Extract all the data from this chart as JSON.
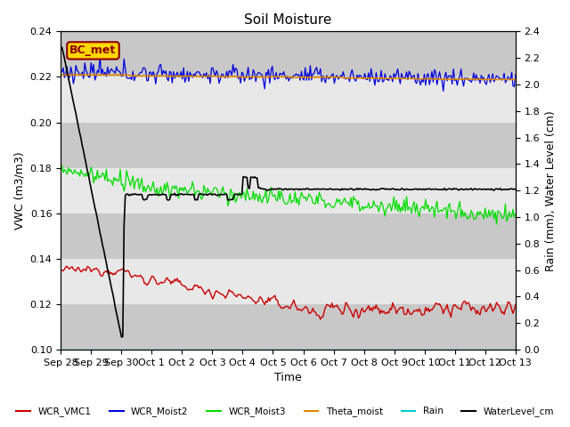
{
  "title": "Soil Moisture",
  "xlabel": "Time",
  "ylabel_left": "VWC (m3/m3)",
  "ylabel_right": "Rain (mm), Water Level (cm)",
  "ylim_left": [
    0.1,
    0.24
  ],
  "ylim_right": [
    0.0,
    2.4
  ],
  "yticks_left": [
    0.1,
    0.12,
    0.14,
    0.16,
    0.18,
    0.2,
    0.22,
    0.24
  ],
  "yticks_right": [
    0.0,
    0.2,
    0.4,
    0.6,
    0.8,
    1.0,
    1.2,
    1.4,
    1.6,
    1.8,
    2.0,
    2.2,
    2.4
  ],
  "xtick_labels": [
    "Sep 28",
    "Sep 29",
    "Sep 30",
    "Oct 1",
    "Oct 2",
    "Oct 3",
    "Oct 4",
    "Oct 5",
    "Oct 6",
    "Oct 7",
    "Oct 8",
    "Oct 9",
    "Oct 10",
    "Oct 11",
    "Oct 12",
    "Oct 13"
  ],
  "line_colors": {
    "WCR_VMC1": "#cc0000",
    "WCR_Moist2": "#0000dd",
    "WCR_Moist3": "#00dd00",
    "Theta_moist": "#dd8800",
    "Rain": "#00cccc",
    "WaterLevel_cm": "#000000"
  },
  "annotation_text": "BC_met",
  "annotation_color": "#8B0000",
  "annotation_bg": "#FFD700",
  "bg_dark": "#c8c8c8",
  "bg_light": "#e8e8e8",
  "title_fontsize": 11,
  "n_days": 15,
  "n_points": 360
}
